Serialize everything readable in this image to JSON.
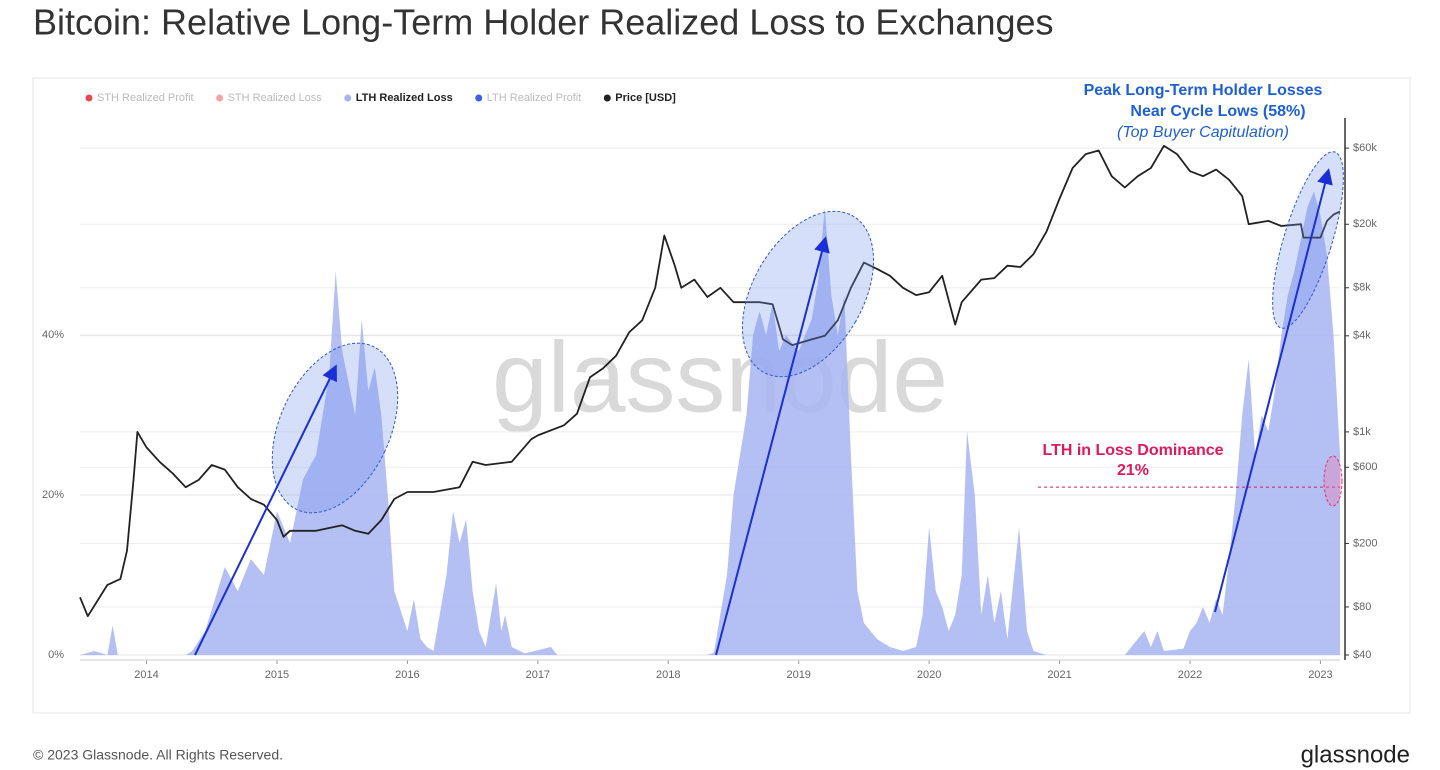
{
  "title": "Bitcoin: Relative Long-Term Holder Realized Loss to Exchanges",
  "footer": "© 2023 Glassnode. All Rights Reserved.",
  "logo": "glassnode",
  "watermark": "glassnode",
  "chart_data": {
    "type": "area-line",
    "xlim": [
      2013.49,
      2023.15
    ],
    "xticks": [
      2014,
      2015,
      2016,
      2017,
      2018,
      2019,
      2020,
      2021,
      2022,
      2023
    ],
    "ylim": [
      0,
      64.4
    ],
    "yticks": [
      {
        "value": 0,
        "label": "0%"
      },
      {
        "value": 20,
        "label": "20%"
      },
      {
        "value": 40,
        "label": "40%"
      }
    ],
    "y2lim": [
      40,
      67440
    ],
    "y2log": true,
    "y2ticks": [
      {
        "value": 40,
        "label": "$40"
      },
      {
        "value": 80,
        "label": "$80"
      },
      {
        "value": 200,
        "label": "$200"
      },
      {
        "value": 600,
        "label": "$600"
      },
      {
        "value": 1000,
        "label": "$1k"
      },
      {
        "value": 4000,
        "label": "$4k"
      },
      {
        "value": 8000,
        "label": "$8k"
      },
      {
        "value": 20000,
        "label": "$20k"
      },
      {
        "value": 60000,
        "label": "$60k"
      }
    ],
    "grid": true,
    "legend": "top-left",
    "series": [
      {
        "name": "STH Realized Profit",
        "color": "#e5484d",
        "visible": false
      },
      {
        "name": "STH Realized Loss",
        "color": "#f3a6a6",
        "visible": false
      },
      {
        "name": "LTH Realized Loss",
        "color": "#a7b4f2",
        "visible": true,
        "style": "area",
        "x": [
          2013.49,
          2013.6,
          2013.7,
          2013.74,
          2013.78,
          2013.95,
          2014.3,
          2014.35,
          2014.45,
          2014.6,
          2014.7,
          2014.8,
          2014.9,
          2015.0,
          2015.1,
          2015.2,
          2015.3,
          2015.35,
          2015.4,
          2015.45,
          2015.5,
          2015.6,
          2015.65,
          2015.7,
          2015.75,
          2015.8,
          2015.85,
          2015.9,
          2016.0,
          2016.05,
          2016.1,
          2016.15,
          2016.2,
          2016.3,
          2016.35,
          2016.4,
          2016.45,
          2016.5,
          2016.55,
          2016.6,
          2016.68,
          2016.72,
          2016.75,
          2016.8,
          2016.9,
          2017.1,
          2017.15,
          2018.3,
          2018.35,
          2018.45,
          2018.5,
          2018.55,
          2018.6,
          2018.65,
          2018.7,
          2018.75,
          2018.8,
          2018.85,
          2018.9,
          2019.0,
          2019.1,
          2019.15,
          2019.2,
          2019.25,
          2019.3,
          2019.35,
          2019.4,
          2019.45,
          2019.5,
          2019.6,
          2019.7,
          2019.8,
          2019.9,
          2019.95,
          2020.0,
          2020.05,
          2020.1,
          2020.15,
          2020.2,
          2020.25,
          2020.29,
          2020.35,
          2020.4,
          2020.45,
          2020.5,
          2020.55,
          2020.6,
          2020.69,
          2020.75,
          2020.8,
          2020.9,
          2021.5,
          2021.55,
          2021.65,
          2021.7,
          2021.75,
          2021.8,
          2021.95,
          2022.0,
          2022.05,
          2022.1,
          2022.15,
          2022.2,
          2022.25,
          2022.3,
          2022.35,
          2022.4,
          2022.45,
          2022.5,
          2022.55,
          2022.6,
          2022.65,
          2022.7,
          2022.75,
          2022.8,
          2022.85,
          2022.9,
          2022.95,
          2023.0,
          2023.05,
          2023.1,
          2023.15
        ],
        "values": [
          0,
          0.5,
          0,
          3.7,
          0,
          0,
          0,
          0.5,
          3,
          11,
          8,
          12,
          10,
          18,
          14,
          22,
          25,
          30,
          35,
          48,
          38,
          30,
          42,
          33,
          36,
          30,
          20,
          8,
          3,
          7,
          2,
          1,
          0.5,
          10,
          18,
          14,
          17,
          8,
          3,
          1,
          9,
          3,
          5,
          1,
          0.2,
          1,
          0,
          0,
          0.3,
          10,
          20,
          25,
          30,
          40,
          43,
          40,
          44,
          38,
          40,
          38,
          42,
          47,
          56,
          45,
          40,
          45,
          25,
          8,
          4,
          2,
          1,
          0.5,
          1,
          5,
          16,
          8,
          6,
          3,
          5,
          10,
          28,
          20,
          5,
          10,
          4,
          8,
          2,
          16,
          3,
          0.5,
          0,
          0,
          1,
          3,
          1,
          3,
          0.5,
          0.8,
          3,
          4,
          6,
          4,
          7,
          5,
          12,
          20,
          30,
          37,
          25,
          30,
          28,
          33,
          40,
          45,
          48,
          52,
          56,
          58,
          55,
          50,
          40,
          25
        ]
      },
      {
        "name": "LTH Realized Profit",
        "color": "#3d5fe0",
        "visible": false
      },
      {
        "name": "Price [USD]",
        "color": "#222222",
        "visible": true,
        "style": "line",
        "axis": "y2",
        "x": [
          2013.49,
          2013.55,
          2013.7,
          2013.8,
          2013.85,
          2013.9,
          2013.93,
          2014.0,
          2014.1,
          2014.2,
          2014.3,
          2014.4,
          2014.5,
          2014.6,
          2014.7,
          2014.8,
          2014.9,
          2015.0,
          2015.05,
          2015.1,
          2015.3,
          2015.5,
          2015.6,
          2015.7,
          2015.8,
          2015.9,
          2016.0,
          2016.2,
          2016.4,
          2016.5,
          2016.6,
          2016.8,
          2016.95,
          2017.0,
          2017.2,
          2017.3,
          2017.4,
          2017.5,
          2017.6,
          2017.7,
          2017.8,
          2017.9,
          2017.97,
          2018.05,
          2018.1,
          2018.2,
          2018.3,
          2018.4,
          2018.5,
          2018.6,
          2018.7,
          2018.8,
          2018.88,
          2018.95,
          2019.1,
          2019.2,
          2019.3,
          2019.4,
          2019.5,
          2019.6,
          2019.7,
          2019.8,
          2019.9,
          2020.0,
          2020.1,
          2020.2,
          2020.25,
          2020.4,
          2020.5,
          2020.6,
          2020.7,
          2020.8,
          2020.9,
          2021.0,
          2021.1,
          2021.2,
          2021.3,
          2021.4,
          2021.5,
          2021.6,
          2021.7,
          2021.8,
          2021.9,
          2022.0,
          2022.1,
          2022.2,
          2022.3,
          2022.4,
          2022.45,
          2022.6,
          2022.7,
          2022.85,
          2022.87,
          2023.0,
          2023.05,
          2023.1,
          2023.15
        ],
        "values": [
          92,
          70,
          110,
          120,
          180,
          500,
          1000,
          800,
          650,
          550,
          450,
          500,
          620,
          580,
          450,
          380,
          350,
          280,
          220,
          240,
          240,
          260,
          240,
          230,
          280,
          380,
          420,
          420,
          450,
          650,
          620,
          650,
          900,
          950,
          1100,
          1300,
          2200,
          2500,
          3000,
          4200,
          5000,
          8000,
          17000,
          11000,
          8000,
          9000,
          7000,
          8000,
          6500,
          6500,
          6500,
          6300,
          3800,
          3500,
          3800,
          4000,
          5000,
          8000,
          11500,
          10500,
          9500,
          8000,
          7200,
          7500,
          9500,
          4700,
          6500,
          9000,
          9200,
          11000,
          10800,
          13000,
          18000,
          29000,
          45000,
          55000,
          58000,
          40000,
          34000,
          40000,
          45000,
          62000,
          55000,
          43000,
          40000,
          44000,
          38000,
          30000,
          20000,
          21000,
          19500,
          20000,
          16500,
          16500,
          21000,
          23000,
          24000
        ]
      }
    ],
    "annotations": {
      "peak": {
        "lines": [
          "Peak Long-Term Holder Losses",
          "Near Cycle Lows (58%)"
        ],
        "note": "(Top Buyer Capitulation)"
      },
      "dominance": {
        "text": "LTH in Loss Dominance",
        "value": 21,
        "label": "21%"
      }
    }
  }
}
